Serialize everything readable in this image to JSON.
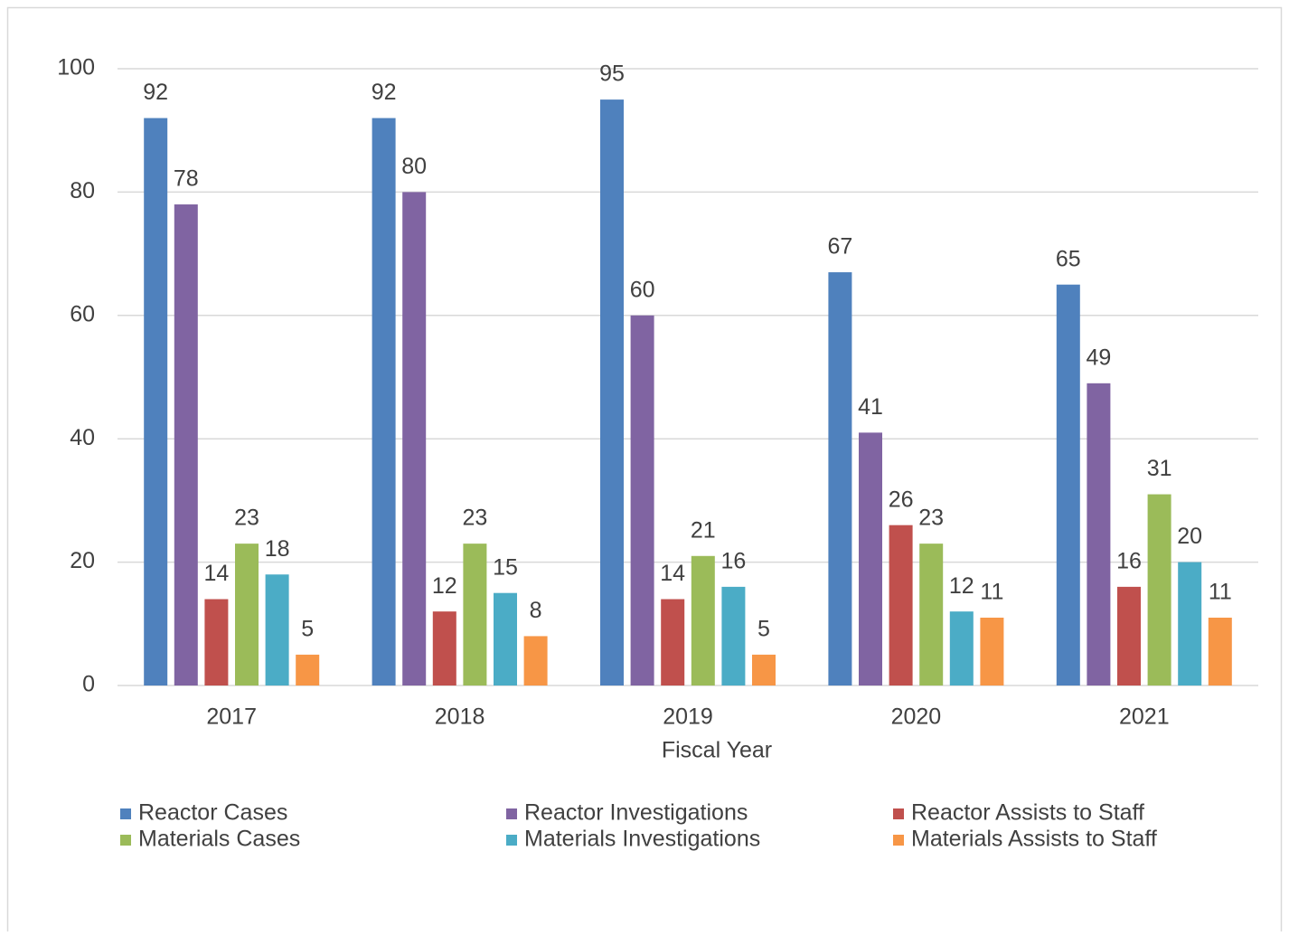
{
  "chart_data": {
    "type": "bar",
    "x_label": "Fiscal Year",
    "categories": [
      "2017",
      "2018",
      "2019",
      "2020",
      "2021"
    ],
    "series": [
      {
        "name": "Reactor Cases",
        "color": "#4f81bd",
        "values": [
          92,
          92,
          95,
          67,
          65
        ]
      },
      {
        "name": "Reactor Investigations",
        "color": "#8064a2",
        "values": [
          78,
          80,
          60,
          41,
          49
        ]
      },
      {
        "name": "Reactor Assists to Staff",
        "color": "#c0504d",
        "values": [
          14,
          12,
          14,
          26,
          16
        ]
      },
      {
        "name": "Materials Cases",
        "color": "#9bbb59",
        "values": [
          23,
          23,
          21,
          23,
          31
        ]
      },
      {
        "name": "Materials Investigations",
        "color": "#4bacc6",
        "values": [
          18,
          15,
          16,
          12,
          20
        ]
      },
      {
        "name": "Materials Assists to Staff",
        "color": "#f79646",
        "values": [
          5,
          8,
          5,
          11,
          11
        ]
      }
    ],
    "ylim": [
      0,
      100
    ],
    "yticks": [
      0,
      20,
      40,
      60,
      80,
      100
    ],
    "grid": true,
    "legend": "bottom"
  }
}
